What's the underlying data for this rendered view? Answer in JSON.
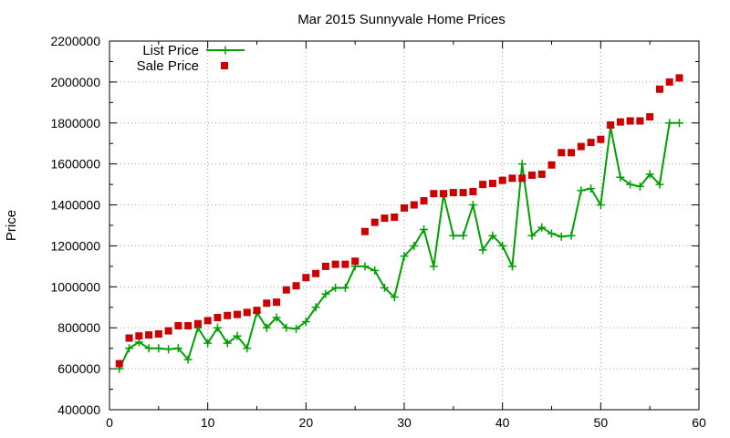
{
  "chart_data": {
    "type": "line",
    "title": "Mar 2015 Sunnyvale Home Prices",
    "xlabel": "",
    "ylabel": "Price",
    "xlim": [
      0,
      60
    ],
    "ylim": [
      400000,
      2200000
    ],
    "xticks": [
      "0",
      "10",
      "20",
      "30",
      "40",
      "50",
      "60"
    ],
    "xtick_values": [
      0,
      10,
      20,
      30,
      40,
      50,
      60
    ],
    "yticks": [
      "400000",
      "600000",
      "800000",
      "1000000",
      "1200000",
      "1400000",
      "1600000",
      "1800000",
      "2000000",
      "2200000"
    ],
    "ytick_values": [
      400000,
      600000,
      800000,
      1000000,
      1200000,
      1400000,
      1600000,
      1800000,
      2000000,
      2200000
    ],
    "grid": true,
    "legend_position": "top-left",
    "x": [
      1,
      2,
      3,
      4,
      5,
      6,
      7,
      8,
      9,
      10,
      11,
      12,
      13,
      14,
      15,
      16,
      17,
      18,
      19,
      20,
      21,
      22,
      23,
      24,
      25,
      26,
      27,
      28,
      29,
      30,
      31,
      32,
      33,
      34,
      35,
      36,
      37,
      38,
      39,
      40,
      41,
      42,
      43,
      44,
      45,
      46,
      47,
      48,
      49,
      50,
      51,
      52,
      53,
      54,
      55,
      56,
      57,
      58
    ],
    "series": [
      {
        "name": "List Price",
        "style": "linespoints",
        "marker": "plus",
        "color": "#00a000",
        "values": [
          600000,
          700000,
          730000,
          700000,
          700000,
          695000,
          700000,
          645000,
          800000,
          725000,
          800000,
          725000,
          760000,
          700000,
          875000,
          800000,
          850000,
          800000,
          795000,
          830000,
          900000,
          965000,
          995000,
          995000,
          1100000,
          1100000,
          1080000,
          995000,
          950000,
          1150000,
          1200000,
          1280000,
          1100000,
          1450000,
          1250000,
          1250000,
          1400000,
          1180000,
          1250000,
          1200000,
          1100000,
          1600000,
          1250000,
          1290000,
          1260000,
          1245000,
          1250000,
          1470000,
          1480000,
          1400000,
          1780000,
          1535000,
          1500000,
          1490000,
          1550000,
          1500000,
          1800000,
          1800000
        ]
      },
      {
        "name": "Sale Price",
        "style": "points",
        "marker": "square",
        "color": "#cc0000",
        "values": [
          625000,
          750000,
          760000,
          765000,
          770000,
          785000,
          810000,
          810000,
          820000,
          835000,
          850000,
          860000,
          865000,
          875000,
          885000,
          920000,
          925000,
          985000,
          1005000,
          1045000,
          1065000,
          1100000,
          1110000,
          1110000,
          1125000,
          1270000,
          1315000,
          1335000,
          1340000,
          1385000,
          1400000,
          1420000,
          1455000,
          1455000,
          1460000,
          1460000,
          1465000,
          1500000,
          1505000,
          1520000,
          1530000,
          1530000,
          1545000,
          1550000,
          1595000,
          1655000,
          1655000,
          1685000,
          1705000,
          1720000,
          1790000,
          1805000,
          1810000,
          1810000,
          1830000,
          1965000,
          2000000,
          2020000
        ]
      }
    ]
  }
}
